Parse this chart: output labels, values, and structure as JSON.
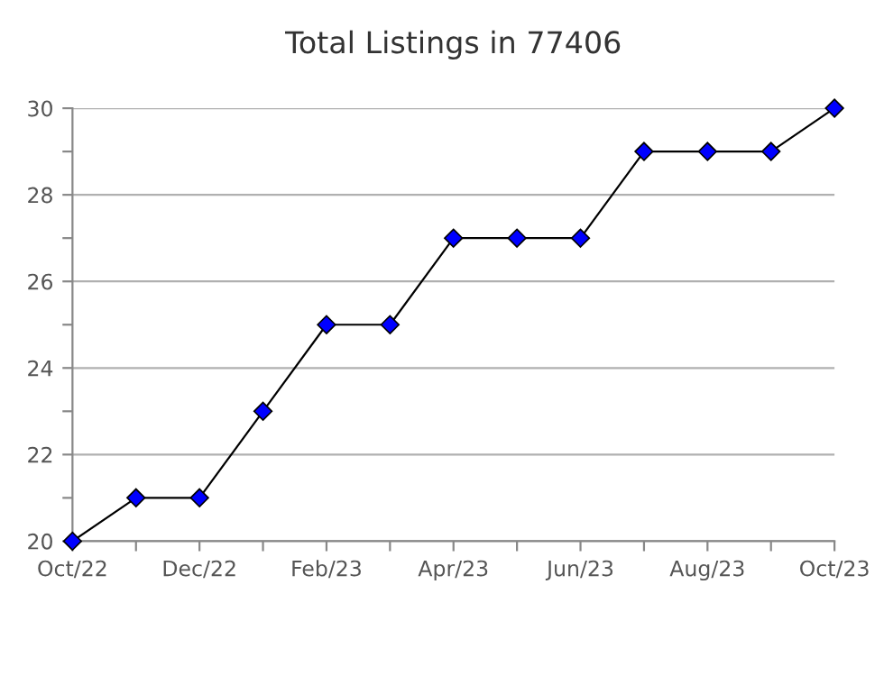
{
  "chart_data": {
    "type": "line",
    "title": "Total Listings in 77406",
    "categories": [
      "Oct/22",
      null,
      "Dec/22",
      null,
      "Feb/23",
      null,
      "Apr/23",
      null,
      "Jun/23",
      null,
      "Aug/23",
      null,
      "Oct/23"
    ],
    "series": [
      {
        "color": "#0000ff",
        "values": [
          20,
          21,
          21,
          23,
          25,
          25,
          27,
          27,
          27,
          29,
          29,
          29,
          30
        ]
      }
    ],
    "ylim": [
      20,
      30
    ],
    "yticks": [
      20,
      {
        "value": 21,
        "label": null
      },
      22,
      {
        "value": 23,
        "label": null
      },
      24,
      {
        "value": 25,
        "label": null
      },
      26,
      {
        "value": 27,
        "label": null
      },
      28,
      {
        "value": 29,
        "label": null
      },
      30
    ],
    "grid": "y",
    "marker": "diamond",
    "line_style": "solid"
  }
}
